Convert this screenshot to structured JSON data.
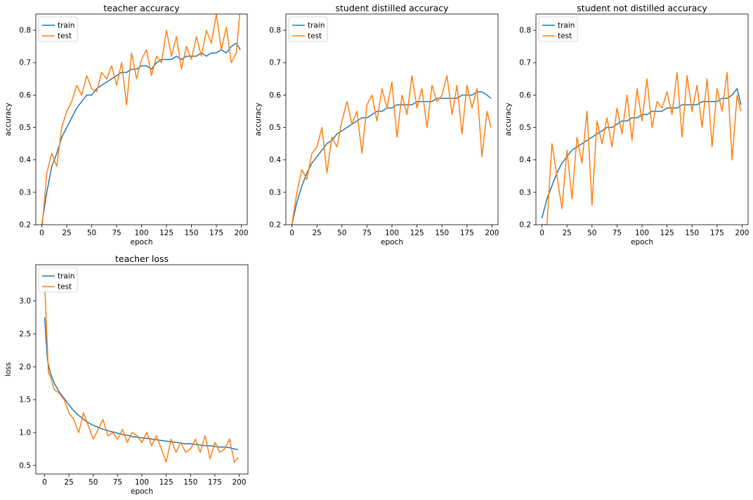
{
  "colors": {
    "train": "#1f77b4",
    "test": "#ff7f0e"
  },
  "chart_data": [
    {
      "type": "line",
      "title": "teacher accuracy",
      "xlabel": "epoch",
      "ylabel": "accuracy",
      "xlim": [
        -6,
        206
      ],
      "ylim": [
        0.2,
        0.85
      ],
      "xticks": [
        0,
        25,
        50,
        75,
        100,
        125,
        150,
        175,
        200
      ],
      "yticks": [
        0.2,
        0.3,
        0.4,
        0.5,
        0.6,
        0.7,
        0.8
      ],
      "legend": "upper-left",
      "series": [
        {
          "name": "train",
          "x": [
            0,
            5,
            10,
            15,
            20,
            25,
            30,
            35,
            40,
            45,
            50,
            55,
            60,
            65,
            70,
            75,
            80,
            85,
            90,
            95,
            100,
            105,
            110,
            115,
            120,
            125,
            130,
            135,
            140,
            145,
            150,
            155,
            160,
            165,
            170,
            175,
            180,
            185,
            190,
            195,
            199
          ],
          "values": [
            0.2,
            0.3,
            0.38,
            0.42,
            0.47,
            0.5,
            0.53,
            0.56,
            0.58,
            0.6,
            0.6,
            0.62,
            0.63,
            0.64,
            0.65,
            0.66,
            0.67,
            0.67,
            0.68,
            0.68,
            0.69,
            0.69,
            0.68,
            0.7,
            0.71,
            0.71,
            0.71,
            0.72,
            0.71,
            0.72,
            0.72,
            0.72,
            0.73,
            0.72,
            0.73,
            0.73,
            0.74,
            0.73,
            0.75,
            0.76,
            0.74
          ]
        },
        {
          "name": "test",
          "x": [
            0,
            5,
            10,
            15,
            20,
            25,
            30,
            35,
            40,
            45,
            50,
            55,
            60,
            65,
            70,
            75,
            80,
            85,
            90,
            95,
            100,
            105,
            110,
            115,
            120,
            125,
            130,
            135,
            140,
            145,
            150,
            155,
            160,
            165,
            170,
            175,
            180,
            185,
            190,
            195,
            199
          ],
          "values": [
            0.18,
            0.36,
            0.42,
            0.38,
            0.5,
            0.55,
            0.58,
            0.63,
            0.6,
            0.66,
            0.62,
            0.61,
            0.67,
            0.65,
            0.69,
            0.63,
            0.7,
            0.57,
            0.73,
            0.65,
            0.71,
            0.74,
            0.66,
            0.72,
            0.7,
            0.8,
            0.72,
            0.78,
            0.68,
            0.75,
            0.71,
            0.78,
            0.72,
            0.8,
            0.76,
            0.85,
            0.74,
            0.81,
            0.7,
            0.73,
            0.87
          ]
        }
      ]
    },
    {
      "type": "line",
      "title": "student distilled accuracy",
      "xlabel": "epoch",
      "ylabel": "accuracy",
      "xlim": [
        -6,
        206
      ],
      "ylim": [
        0.2,
        0.85
      ],
      "xticks": [
        0,
        25,
        50,
        75,
        100,
        125,
        150,
        175,
        200
      ],
      "yticks": [
        0.2,
        0.3,
        0.4,
        0.5,
        0.6,
        0.7,
        0.8
      ],
      "legend": "upper-left",
      "series": [
        {
          "name": "train",
          "x": [
            0,
            5,
            10,
            15,
            20,
            25,
            30,
            35,
            40,
            45,
            50,
            55,
            60,
            65,
            70,
            75,
            80,
            85,
            90,
            95,
            100,
            105,
            110,
            115,
            120,
            125,
            130,
            135,
            140,
            145,
            150,
            155,
            160,
            165,
            170,
            175,
            180,
            185,
            190,
            195,
            199
          ],
          "values": [
            0.2,
            0.27,
            0.32,
            0.36,
            0.39,
            0.41,
            0.43,
            0.45,
            0.46,
            0.48,
            0.49,
            0.5,
            0.51,
            0.52,
            0.53,
            0.53,
            0.54,
            0.55,
            0.55,
            0.56,
            0.56,
            0.57,
            0.57,
            0.57,
            0.57,
            0.58,
            0.58,
            0.58,
            0.58,
            0.59,
            0.59,
            0.59,
            0.59,
            0.59,
            0.6,
            0.6,
            0.6,
            0.61,
            0.61,
            0.6,
            0.59
          ]
        },
        {
          "name": "test",
          "x": [
            0,
            5,
            10,
            15,
            20,
            25,
            30,
            35,
            40,
            45,
            50,
            55,
            60,
            65,
            70,
            75,
            80,
            85,
            90,
            95,
            100,
            105,
            110,
            115,
            120,
            125,
            130,
            135,
            140,
            145,
            150,
            155,
            160,
            165,
            170,
            175,
            180,
            185,
            190,
            195,
            199
          ],
          "values": [
            0.2,
            0.3,
            0.37,
            0.34,
            0.42,
            0.44,
            0.5,
            0.36,
            0.47,
            0.44,
            0.52,
            0.58,
            0.51,
            0.55,
            0.42,
            0.57,
            0.6,
            0.52,
            0.62,
            0.56,
            0.64,
            0.47,
            0.6,
            0.54,
            0.66,
            0.56,
            0.62,
            0.5,
            0.63,
            0.58,
            0.6,
            0.66,
            0.54,
            0.63,
            0.48,
            0.63,
            0.56,
            0.62,
            0.41,
            0.55,
            0.5
          ]
        }
      ]
    },
    {
      "type": "line",
      "title": "student not distilled accuracy",
      "xlabel": "epoch",
      "ylabel": "accuracy",
      "xlim": [
        -6,
        206
      ],
      "ylim": [
        0.2,
        0.85
      ],
      "xticks": [
        0,
        25,
        50,
        75,
        100,
        125,
        150,
        175,
        200
      ],
      "yticks": [
        0.2,
        0.3,
        0.4,
        0.5,
        0.6,
        0.7,
        0.8
      ],
      "legend": "upper-left",
      "series": [
        {
          "name": "train",
          "x": [
            0,
            5,
            10,
            15,
            20,
            25,
            30,
            35,
            40,
            45,
            50,
            55,
            60,
            65,
            70,
            75,
            80,
            85,
            90,
            95,
            100,
            105,
            110,
            115,
            120,
            125,
            130,
            135,
            140,
            145,
            150,
            155,
            160,
            165,
            170,
            175,
            180,
            185,
            190,
            195,
            199
          ],
          "values": [
            0.22,
            0.28,
            0.32,
            0.36,
            0.39,
            0.41,
            0.43,
            0.44,
            0.45,
            0.46,
            0.47,
            0.48,
            0.49,
            0.5,
            0.5,
            0.51,
            0.52,
            0.52,
            0.53,
            0.53,
            0.54,
            0.54,
            0.55,
            0.55,
            0.55,
            0.56,
            0.56,
            0.56,
            0.57,
            0.57,
            0.57,
            0.57,
            0.58,
            0.58,
            0.58,
            0.58,
            0.59,
            0.59,
            0.6,
            0.62,
            0.57
          ]
        },
        {
          "name": "test",
          "x": [
            0,
            5,
            10,
            15,
            20,
            25,
            30,
            35,
            40,
            45,
            50,
            55,
            60,
            65,
            70,
            75,
            80,
            85,
            90,
            95,
            100,
            105,
            110,
            115,
            120,
            125,
            130,
            135,
            140,
            145,
            150,
            155,
            160,
            165,
            170,
            175,
            180,
            185,
            190,
            195,
            199
          ],
          "values": [
            0.2,
            0.2,
            0.45,
            0.35,
            0.25,
            0.43,
            0.28,
            0.47,
            0.39,
            0.55,
            0.26,
            0.52,
            0.45,
            0.53,
            0.44,
            0.56,
            0.48,
            0.6,
            0.46,
            0.62,
            0.52,
            0.65,
            0.5,
            0.58,
            0.56,
            0.61,
            0.54,
            0.67,
            0.47,
            0.66,
            0.55,
            0.63,
            0.5,
            0.65,
            0.44,
            0.62,
            0.55,
            0.67,
            0.4,
            0.6,
            0.55
          ]
        }
      ]
    },
    {
      "type": "line",
      "title": "teacher loss",
      "xlabel": "epoch",
      "ylabel": "loss",
      "xlim": [
        -9,
        209
      ],
      "ylim": [
        0.37,
        3.55
      ],
      "xticks": [
        0,
        25,
        50,
        75,
        100,
        125,
        150,
        175,
        200
      ],
      "yticks": [
        0.5,
        1.0,
        1.5,
        2.0,
        2.5,
        3.0
      ],
      "legend": "upper-left",
      "series": [
        {
          "name": "train",
          "x": [
            0,
            3,
            6,
            10,
            15,
            20,
            25,
            30,
            35,
            40,
            45,
            50,
            55,
            60,
            65,
            70,
            75,
            80,
            85,
            90,
            95,
            100,
            105,
            110,
            115,
            120,
            125,
            130,
            135,
            140,
            145,
            150,
            155,
            160,
            165,
            170,
            175,
            180,
            185,
            190,
            195,
            199
          ],
          "values": [
            2.75,
            2.1,
            1.9,
            1.75,
            1.62,
            1.52,
            1.42,
            1.33,
            1.26,
            1.2,
            1.15,
            1.11,
            1.08,
            1.05,
            1.03,
            1.01,
            0.99,
            0.97,
            0.96,
            0.94,
            0.93,
            0.92,
            0.91,
            0.9,
            0.89,
            0.88,
            0.87,
            0.86,
            0.85,
            0.84,
            0.83,
            0.83,
            0.82,
            0.81,
            0.8,
            0.8,
            0.79,
            0.78,
            0.78,
            0.77,
            0.75,
            0.74
          ]
        },
        {
          "name": "test",
          "x": [
            0,
            2,
            4,
            6,
            10,
            15,
            20,
            25,
            30,
            35,
            40,
            45,
            50,
            55,
            60,
            65,
            70,
            75,
            80,
            85,
            90,
            95,
            100,
            105,
            110,
            115,
            120,
            125,
            130,
            135,
            140,
            145,
            150,
            155,
            160,
            165,
            170,
            175,
            180,
            185,
            190,
            195,
            199
          ],
          "values": [
            3.3,
            2.6,
            1.9,
            1.85,
            1.65,
            1.6,
            1.5,
            1.3,
            1.2,
            1.0,
            1.3,
            1.1,
            0.9,
            1.05,
            1.2,
            0.95,
            1.0,
            0.9,
            1.05,
            0.85,
            1.0,
            0.95,
            0.85,
            1.0,
            0.8,
            0.95,
            0.75,
            0.55,
            0.9,
            0.7,
            0.85,
            0.7,
            0.75,
            0.9,
            0.7,
            0.95,
            0.6,
            0.85,
            0.7,
            0.75,
            0.9,
            0.55,
            0.62
          ]
        }
      ]
    }
  ]
}
